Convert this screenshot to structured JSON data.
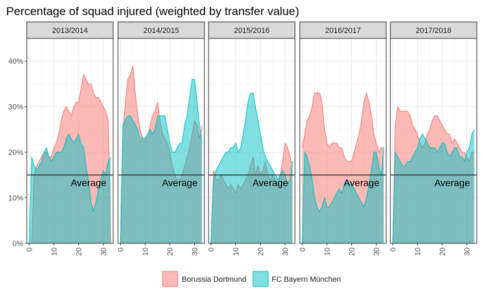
{
  "chart_data": {
    "type": "area",
    "title": "Percentage of squad injured (weighted by transfer value)",
    "xlabel": "",
    "ylabel": "",
    "ylim": [
      0,
      0.45
    ],
    "xlim": [
      -1,
      34
    ],
    "x_ticks": [
      "0",
      "10",
      "20",
      "30"
    ],
    "x_tick_values": [
      0,
      10,
      20,
      30
    ],
    "y_ticks": [
      "0%",
      "10%",
      "20%",
      "30%",
      "40%"
    ],
    "y_tick_values": [
      0,
      0.1,
      0.2,
      0.3,
      0.4
    ],
    "grid": true,
    "legend_position": "bottom",
    "average": {
      "label": "Average",
      "value": 0.15
    },
    "series_names": [
      "Borussia Dortmund",
      "FC Bayern München"
    ],
    "colors": {
      "dortmund": "#F8766D",
      "bayern": "#00BFC4"
    },
    "panels": [
      {
        "label": "2013/2014",
        "x": [
          0,
          1,
          2,
          3,
          4,
          5,
          6,
          7,
          8,
          9,
          10,
          11,
          12,
          13,
          14,
          15,
          16,
          17,
          18,
          19,
          20,
          21,
          22,
          23,
          24,
          25,
          26,
          27,
          28,
          29,
          30,
          31,
          32,
          33
        ],
        "dortmund": [
          0.0,
          0.0,
          0.15,
          0.17,
          0.18,
          0.19,
          0.2,
          0.2,
          0.19,
          0.19,
          0.21,
          0.22,
          0.24,
          0.27,
          0.29,
          0.3,
          0.29,
          0.28,
          0.3,
          0.31,
          0.31,
          0.34,
          0.37,
          0.36,
          0.35,
          0.35,
          0.33,
          0.32,
          0.32,
          0.31,
          0.3,
          0.29,
          0.27,
          0.0
        ],
        "bayern": [
          0.0,
          0.19,
          0.17,
          0.16,
          0.17,
          0.18,
          0.2,
          0.21,
          0.19,
          0.18,
          0.19,
          0.2,
          0.2,
          0.2,
          0.21,
          0.23,
          0.24,
          0.23,
          0.22,
          0.23,
          0.24,
          0.22,
          0.21,
          0.17,
          0.14,
          0.09,
          0.07,
          0.09,
          0.12,
          0.14,
          0.16,
          0.15,
          0.18,
          0.19
        ]
      },
      {
        "label": "2014/2015",
        "x": [
          0,
          1,
          2,
          3,
          4,
          5,
          6,
          7,
          8,
          9,
          10,
          11,
          12,
          13,
          14,
          15,
          16,
          17,
          18,
          19,
          20,
          21,
          22,
          23,
          24,
          25,
          26,
          27,
          28,
          29,
          30,
          31,
          32,
          33
        ],
        "dortmund": [
          0.0,
          0.25,
          0.31,
          0.36,
          0.37,
          0.39,
          0.33,
          0.28,
          0.25,
          0.23,
          0.23,
          0.23,
          0.26,
          0.28,
          0.29,
          0.31,
          0.27,
          0.24,
          0.23,
          0.22,
          0.2,
          0.17,
          0.15,
          0.14,
          0.14,
          0.15,
          0.17,
          0.19,
          0.21,
          0.24,
          0.27,
          0.26,
          0.23,
          0.26
        ],
        "bayern": [
          0.0,
          0.26,
          0.27,
          0.28,
          0.28,
          0.27,
          0.26,
          0.25,
          0.23,
          0.23,
          0.23,
          0.24,
          0.25,
          0.24,
          0.25,
          0.28,
          0.28,
          0.28,
          0.28,
          0.25,
          0.22,
          0.2,
          0.2,
          0.21,
          0.22,
          0.22,
          0.26,
          0.28,
          0.32,
          0.36,
          0.36,
          0.31,
          0.26,
          0.22
        ]
      },
      {
        "label": "2015/2016",
        "x": [
          0,
          1,
          2,
          3,
          4,
          5,
          6,
          7,
          8,
          9,
          10,
          11,
          12,
          13,
          14,
          15,
          16,
          17,
          18,
          19,
          20,
          21,
          22,
          23,
          24,
          25,
          26,
          27,
          28,
          29,
          30,
          31,
          32,
          33
        ],
        "dortmund": [
          0.0,
          0.16,
          0.14,
          0.14,
          0.15,
          0.14,
          0.13,
          0.12,
          0.13,
          0.12,
          0.11,
          0.13,
          0.12,
          0.13,
          0.14,
          0.15,
          0.17,
          0.19,
          0.15,
          0.17,
          0.15,
          0.16,
          0.18,
          0.15,
          0.14,
          0.15,
          0.14,
          0.13,
          0.15,
          0.18,
          0.22,
          0.21,
          0.19,
          0.17
        ],
        "bayern": [
          0.0,
          0.14,
          0.16,
          0.17,
          0.18,
          0.19,
          0.2,
          0.2,
          0.21,
          0.21,
          0.22,
          0.2,
          0.21,
          0.24,
          0.27,
          0.31,
          0.33,
          0.33,
          0.3,
          0.27,
          0.24,
          0.21,
          0.19,
          0.18,
          0.17,
          0.16,
          0.15,
          0.14,
          0.15,
          0.16,
          0.15,
          0.13,
          0.14,
          0.18
        ]
      },
      {
        "label": "2016/2017",
        "x": [
          0,
          1,
          2,
          3,
          4,
          5,
          6,
          7,
          8,
          9,
          10,
          11,
          12,
          13,
          14,
          15,
          16,
          17,
          18,
          19,
          20,
          21,
          22,
          23,
          24,
          25,
          26,
          27,
          28,
          29,
          30,
          31,
          32,
          33
        ],
        "dortmund": [
          0.21,
          0.24,
          0.27,
          0.28,
          0.3,
          0.33,
          0.33,
          0.33,
          0.31,
          0.25,
          0.22,
          0.21,
          0.22,
          0.22,
          0.22,
          0.21,
          0.21,
          0.19,
          0.18,
          0.18,
          0.18,
          0.2,
          0.22,
          0.24,
          0.27,
          0.31,
          0.33,
          0.31,
          0.28,
          0.24,
          0.22,
          0.2,
          0.21,
          0.21
        ],
        "bayern": [
          0.0,
          0.2,
          0.19,
          0.17,
          0.14,
          0.1,
          0.08,
          0.07,
          0.08,
          0.1,
          0.08,
          0.08,
          0.09,
          0.1,
          0.11,
          0.12,
          0.11,
          0.13,
          0.14,
          0.13,
          0.13,
          0.12,
          0.11,
          0.1,
          0.09,
          0.08,
          0.1,
          0.13,
          0.16,
          0.2,
          0.2,
          0.17,
          0.15,
          0.21
        ]
      },
      {
        "label": "2017/2018",
        "x": [
          0,
          1,
          2,
          3,
          4,
          5,
          6,
          7,
          8,
          9,
          10,
          11,
          12,
          13,
          14,
          15,
          16,
          17,
          18,
          19,
          20,
          21,
          22,
          23,
          24,
          25,
          26,
          27,
          28,
          29,
          30,
          31,
          32,
          33
        ],
        "dortmund": [
          0.0,
          0.26,
          0.3,
          0.29,
          0.29,
          0.29,
          0.29,
          0.28,
          0.26,
          0.25,
          0.24,
          0.22,
          0.21,
          0.22,
          0.24,
          0.25,
          0.27,
          0.28,
          0.28,
          0.27,
          0.26,
          0.25,
          0.24,
          0.24,
          0.22,
          0.23,
          0.22,
          0.21,
          0.2,
          0.2,
          0.19,
          0.18,
          0.2,
          0.2
        ],
        "bayern": [
          0.0,
          0.2,
          0.19,
          0.18,
          0.17,
          0.17,
          0.18,
          0.18,
          0.19,
          0.2,
          0.21,
          0.23,
          0.24,
          0.23,
          0.22,
          0.21,
          0.21,
          0.21,
          0.2,
          0.21,
          0.22,
          0.22,
          0.2,
          0.19,
          0.2,
          0.21,
          0.21,
          0.19,
          0.19,
          0.18,
          0.2,
          0.21,
          0.24,
          0.25
        ]
      }
    ]
  }
}
